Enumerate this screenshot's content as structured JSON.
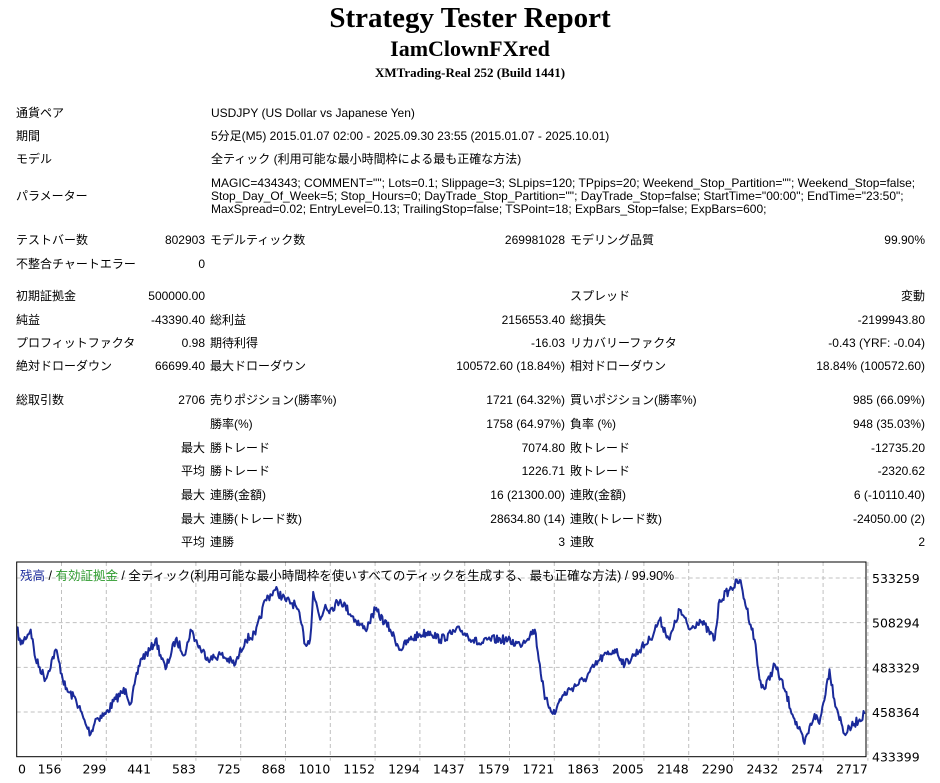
{
  "header": {
    "title": "Strategy Tester Report",
    "ea_name": "IamClownFXred",
    "server": "XMTrading-Real 252 (Build 1441)"
  },
  "info": {
    "symbol_label": "通貨ペア",
    "symbol_value": "USDJPY (US Dollar vs Japanese Yen)",
    "period_label": "期間",
    "period_value": "5分足(M5) 2015.01.07 02:00 - 2025.09.30 23:55 (2015.01.07 - 2025.10.01)",
    "model_label": "モデル",
    "model_value": "全ティック (利用可能な最小時間枠による最も正確な方法)",
    "params_label": "パラメーター",
    "params_lines": [
      "MAGIC=434343; COMMENT=\"\"; Lots=0.1; Slippage=3; SLpips=120; TPpips=20; Weekend_Stop_Partition=\"\"; Weekend_Stop=false;",
      "Stop_Day_Of_Week=5; Stop_Hours=0; DayTrade_Stop_Partition=\"\"; DayTrade_Stop=false; StartTime=\"00:00\"; EndTime=\"23:50\";",
      "MaxSpread=0.02; EntryLevel=0.13; TrailingStop=false; TSPoint=18; ExpBars_Stop=false; ExpBars=600;"
    ]
  },
  "stats": [
    [
      "テストバー数",
      "802903",
      "モデルティック数",
      "269981028",
      "モデリング品質",
      "99.90%"
    ],
    [
      "不整合チャートエラー",
      "0",
      "",
      "",
      "",
      ""
    ],
    [
      "初期証拠金",
      "500000.00",
      "",
      "",
      "スプレッド",
      "変動"
    ],
    [
      "純益",
      "-43390.40",
      "総利益",
      "2156553.40",
      "総損失",
      "-2199943.80"
    ],
    [
      "プロフィットファクタ",
      "0.98",
      "期待利得",
      "-16.03",
      "リカバリーファクタ",
      "-0.43 (YRF: -0.04)"
    ],
    [
      "絶対ドローダウン",
      "66699.40",
      "最大ドローダウン",
      "100572.60 (18.84%)",
      "相対ドローダウン",
      "18.84% (100572.60)"
    ],
    [
      "総取引数",
      "2706",
      "売りポジション(勝率%)",
      "1721 (64.32%)",
      "買いポジション(勝率%)",
      "985 (66.09%)"
    ],
    [
      "",
      "",
      "勝率(%)",
      "1758 (64.97%)",
      "負率 (%)",
      "948 (35.03%)"
    ],
    [
      "",
      "最大",
      "勝トレード",
      "7074.80",
      "敗トレード",
      "-12735.20"
    ],
    [
      "",
      "平均",
      "勝トレード",
      "1226.71",
      "敗トレード",
      "-2320.62"
    ],
    [
      "",
      "最大",
      "連勝(金額)",
      "16 (21300.00)",
      "連敗(金額)",
      "6 (-10110.40)"
    ],
    [
      "",
      "最大",
      "連勝(トレード数)",
      "28634.80 (14)",
      "連敗(トレード数)",
      "-24050.00 (2)"
    ],
    [
      "",
      "平均",
      "連勝",
      "3",
      "連敗",
      "2"
    ]
  ],
  "chart_data": {
    "type": "line",
    "title_parts": [
      "残高",
      " / ",
      "有効証拠金",
      " / 全ティック(利用可能な最小時間枠を使いすべてのティックを生成する、最も正確な方法) / 99.90%"
    ],
    "colors": {
      "balance": "#1a2a9a",
      "equity": "#2e9a2e",
      "grid": "#c0c0c0"
    },
    "xlabel": "",
    "ylabel": "",
    "x_ticks": [
      "0",
      "156",
      "299",
      "441",
      "583",
      "725",
      "868",
      "1010",
      "1152",
      "1294",
      "1437",
      "1579",
      "1721",
      "1863",
      "2005",
      "2148",
      "2290",
      "2432",
      "2574",
      "2717"
    ],
    "y_ticks": [
      "533259",
      "508294",
      "483329",
      "458364",
      "433399"
    ],
    "ylim": [
      433399,
      533259
    ],
    "xlim": [
      0,
      2790
    ],
    "grid": true,
    "series": [
      {
        "name": "残高",
        "x": [
          0,
          13,
          46,
          62,
          95,
          128,
          161,
          194,
          226,
          243,
          259,
          292,
          325,
          358,
          374,
          407,
          440,
          456,
          489,
          522,
          554,
          571,
          604,
          636,
          669,
          718,
          751,
          784,
          817,
          850,
          882,
          915,
          932,
          948,
          964,
          974,
          997,
          1014,
          1030,
          1063,
          1112,
          1145,
          1178,
          1227,
          1260,
          1292,
          1325,
          1358,
          1391,
          1456,
          1522,
          1555,
          1604,
          1653,
          1702,
          1735,
          1768,
          1784,
          1817,
          1866,
          1916,
          1965,
          1998,
          2030,
          2080,
          2112,
          2145,
          2178,
          2211,
          2244,
          2293,
          2309,
          2342,
          2375,
          2391,
          2424,
          2440,
          2457,
          2490,
          2522,
          2555,
          2588,
          2621,
          2637,
          2670,
          2686,
          2719,
          2752,
          2785
        ],
        "values": [
          505519,
          496087,
          504409,
          487765,
          476669,
          493313,
          471121,
          465573,
          451703,
          446155,
          454477,
          457251,
          465573,
          471121,
          462799,
          487765,
          493313,
          498861,
          482217,
          498861,
          490539,
          504409,
          493313,
          487765,
          490539,
          484991,
          498861,
          501635,
          521053,
          526601,
          521053,
          518279,
          509957,
          496087,
          498861,
          525491,
          509957,
          518279,
          515505,
          521053,
          509957,
          504409,
          515505,
          504409,
          493313,
          498861,
          501635,
          503300,
          498861,
          504409,
          496087,
          498861,
          498861,
          496087,
          504409,
          465573,
          457251,
          465573,
          471121,
          476669,
          487765,
          493313,
          484991,
          490539,
          498861,
          509957,
          498861,
          515505,
          504409,
          509957,
          498861,
          521053,
          526601,
          532149,
          521053,
          498861,
          476669,
          471121,
          484991,
          471121,
          454477,
          440607,
          457251,
          451703,
          482217,
          465573,
          446155,
          451703,
          457251
        ]
      }
    ]
  }
}
